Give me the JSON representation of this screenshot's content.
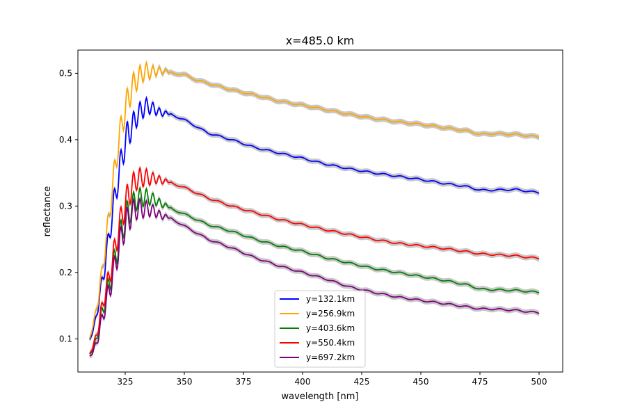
{
  "chart_data": {
    "type": "line",
    "title": "x=485.0 km",
    "xlabel": "wavelength [nm]",
    "ylabel": "reflectance",
    "xlim": [
      305,
      510
    ],
    "ylim": [
      0.05,
      0.535
    ],
    "x_ticks": [
      325,
      350,
      375,
      400,
      425,
      450,
      475,
      500
    ],
    "y_ticks": [
      0.1,
      0.2,
      0.3,
      0.4,
      0.5
    ],
    "grid": false,
    "legend_position": "lower-center",
    "uncertainty_band_color": "#c8c8c8",
    "series": [
      {
        "name": "y=132.1km",
        "color": "#0000ff",
        "points": [
          [
            310,
            0.098
          ],
          [
            312,
            0.12
          ],
          [
            314,
            0.16
          ],
          [
            316,
            0.2
          ],
          [
            318,
            0.25
          ],
          [
            320,
            0.3
          ],
          [
            322,
            0.34
          ],
          [
            324,
            0.38
          ],
          [
            326,
            0.41
          ],
          [
            328,
            0.42
          ],
          [
            330,
            0.435
          ],
          [
            332,
            0.445
          ],
          [
            334,
            0.452
          ],
          [
            336,
            0.447
          ],
          [
            338,
            0.444
          ],
          [
            340,
            0.442
          ],
          [
            345,
            0.437
          ],
          [
            350,
            0.43
          ],
          [
            355,
            0.42
          ],
          [
            360,
            0.41
          ],
          [
            370,
            0.4
          ],
          [
            380,
            0.388
          ],
          [
            390,
            0.38
          ],
          [
            400,
            0.372
          ],
          [
            410,
            0.363
          ],
          [
            420,
            0.356
          ],
          [
            430,
            0.35
          ],
          [
            440,
            0.345
          ],
          [
            450,
            0.34
          ],
          [
            460,
            0.334
          ],
          [
            470,
            0.329
          ],
          [
            475,
            0.324
          ],
          [
            480,
            0.324
          ],
          [
            490,
            0.325
          ],
          [
            500,
            0.32
          ]
        ]
      },
      {
        "name": "y=256.9km",
        "color": "#ffa500",
        "points": [
          [
            310,
            0.1
          ],
          [
            312,
            0.13
          ],
          [
            314,
            0.17
          ],
          [
            316,
            0.22
          ],
          [
            318,
            0.28
          ],
          [
            320,
            0.34
          ],
          [
            322,
            0.39
          ],
          [
            324,
            0.43
          ],
          [
            326,
            0.46
          ],
          [
            328,
            0.48
          ],
          [
            330,
            0.49
          ],
          [
            332,
            0.5
          ],
          [
            334,
            0.505
          ],
          [
            336,
            0.5
          ],
          [
            338,
            0.503
          ],
          [
            340,
            0.505
          ],
          [
            345,
            0.5
          ],
          [
            350,
            0.498
          ],
          [
            355,
            0.49
          ],
          [
            360,
            0.485
          ],
          [
            370,
            0.475
          ],
          [
            380,
            0.467
          ],
          [
            390,
            0.458
          ],
          [
            400,
            0.452
          ],
          [
            410,
            0.445
          ],
          [
            420,
            0.438
          ],
          [
            430,
            0.432
          ],
          [
            440,
            0.427
          ],
          [
            450,
            0.423
          ],
          [
            460,
            0.418
          ],
          [
            470,
            0.413
          ],
          [
            475,
            0.408
          ],
          [
            480,
            0.409
          ],
          [
            490,
            0.408
          ],
          [
            500,
            0.404
          ]
        ]
      },
      {
        "name": "y=403.6km",
        "color": "#008000",
        "points": [
          [
            310,
            0.076
          ],
          [
            312,
            0.09
          ],
          [
            314,
            0.12
          ],
          [
            316,
            0.15
          ],
          [
            318,
            0.18
          ],
          [
            320,
            0.21
          ],
          [
            322,
            0.24
          ],
          [
            324,
            0.27
          ],
          [
            326,
            0.29
          ],
          [
            328,
            0.3
          ],
          [
            330,
            0.31
          ],
          [
            332,
            0.313
          ],
          [
            334,
            0.315
          ],
          [
            336,
            0.31
          ],
          [
            338,
            0.308
          ],
          [
            340,
            0.305
          ],
          [
            345,
            0.295
          ],
          [
            350,
            0.288
          ],
          [
            355,
            0.28
          ],
          [
            360,
            0.272
          ],
          [
            370,
            0.262
          ],
          [
            380,
            0.25
          ],
          [
            390,
            0.24
          ],
          [
            400,
            0.232
          ],
          [
            410,
            0.222
          ],
          [
            420,
            0.214
          ],
          [
            430,
            0.206
          ],
          [
            440,
            0.2
          ],
          [
            450,
            0.194
          ],
          [
            460,
            0.188
          ],
          [
            470,
            0.181
          ],
          [
            475,
            0.175
          ],
          [
            480,
            0.174
          ],
          [
            490,
            0.173
          ],
          [
            500,
            0.17
          ]
        ]
      },
      {
        "name": "y=550.4km",
        "color": "#ff0000",
        "points": [
          [
            310,
            0.077
          ],
          [
            312,
            0.095
          ],
          [
            314,
            0.125
          ],
          [
            316,
            0.16
          ],
          [
            318,
            0.19
          ],
          [
            320,
            0.225
          ],
          [
            322,
            0.26
          ],
          [
            324,
            0.29
          ],
          [
            326,
            0.315
          ],
          [
            328,
            0.33
          ],
          [
            330,
            0.34
          ],
          [
            332,
            0.343
          ],
          [
            334,
            0.345
          ],
          [
            336,
            0.34
          ],
          [
            338,
            0.341
          ],
          [
            340,
            0.34
          ],
          [
            345,
            0.334
          ],
          [
            350,
            0.328
          ],
          [
            355,
            0.32
          ],
          [
            360,
            0.312
          ],
          [
            370,
            0.3
          ],
          [
            380,
            0.29
          ],
          [
            390,
            0.28
          ],
          [
            400,
            0.272
          ],
          [
            410,
            0.264
          ],
          [
            420,
            0.257
          ],
          [
            430,
            0.25
          ],
          [
            440,
            0.244
          ],
          [
            450,
            0.24
          ],
          [
            460,
            0.236
          ],
          [
            470,
            0.231
          ],
          [
            475,
            0.228
          ],
          [
            480,
            0.227
          ],
          [
            490,
            0.225
          ],
          [
            500,
            0.221
          ]
        ]
      },
      {
        "name": "y=697.2km",
        "color": "#800080",
        "points": [
          [
            310,
            0.073
          ],
          [
            312,
            0.085
          ],
          [
            314,
            0.11
          ],
          [
            316,
            0.14
          ],
          [
            318,
            0.17
          ],
          [
            320,
            0.2
          ],
          [
            322,
            0.23
          ],
          [
            324,
            0.26
          ],
          [
            326,
            0.28
          ],
          [
            328,
            0.29
          ],
          [
            330,
            0.295
          ],
          [
            332,
            0.296
          ],
          [
            334,
            0.297
          ],
          [
            336,
            0.293
          ],
          [
            338,
            0.29
          ],
          [
            340,
            0.287
          ],
          [
            345,
            0.28
          ],
          [
            350,
            0.27
          ],
          [
            355,
            0.26
          ],
          [
            360,
            0.25
          ],
          [
            370,
            0.237
          ],
          [
            380,
            0.222
          ],
          [
            390,
            0.21
          ],
          [
            400,
            0.2
          ],
          [
            410,
            0.19
          ],
          [
            420,
            0.178
          ],
          [
            430,
            0.17
          ],
          [
            440,
            0.163
          ],
          [
            450,
            0.158
          ],
          [
            460,
            0.153
          ],
          [
            470,
            0.148
          ],
          [
            475,
            0.145
          ],
          [
            480,
            0.145
          ],
          [
            490,
            0.143
          ],
          [
            500,
            0.139
          ]
        ]
      }
    ]
  }
}
